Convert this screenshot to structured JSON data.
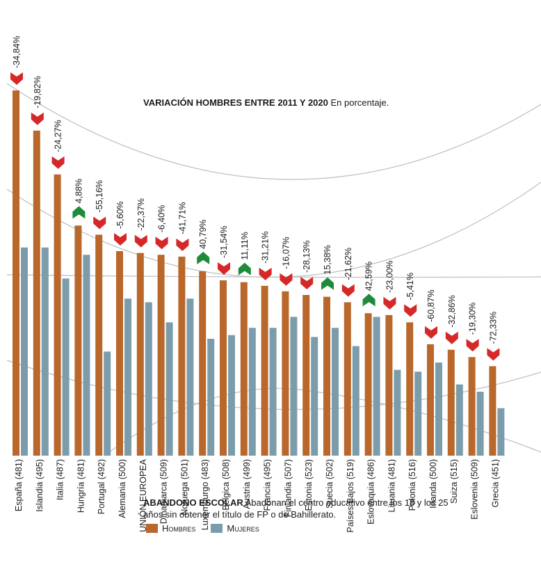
{
  "variation_title": {
    "bold": "VARIACIÓN HOMBRES  ENTRE 2011 Y 2020",
    "rest": " En porcentaje."
  },
  "footer": {
    "bold": "ABANDONO ESCOLAR",
    "rest": " Abadonan el centro educativo entre los 18 y los 25 años sin obtener el título de FP o de Bahillerato."
  },
  "legend": {
    "men": "Hombres",
    "women": "Mujeres"
  },
  "colors": {
    "men": "#b9672a",
    "women": "#7b9dab",
    "down": "#d62828",
    "up": "#1f8a3a",
    "guides": "#bdbdbd"
  },
  "chart_data": {
    "type": "bar",
    "categories": [
      "España (481)",
      "Islandia (495)",
      "Italia (487)",
      "Hungría (481)",
      "Portugal (492)",
      "Alemania (500)",
      "UNIÓN EUROPEA",
      "Dinamarca (509)",
      "Noruega (501)",
      "Luxemburgo (483)",
      "Bélgica (508)",
      "Austria (499)",
      "Francia (495)",
      "Finlandia (507)",
      "Estonia (523)",
      "Suecia (502)",
      "Países Bajos (519)",
      "Eslovaquia (486)",
      "Lituania (481)",
      "Polonia (516)",
      "Irlanda (500)",
      "Suiza (515)",
      "Eslovenia (509)",
      "Grecia (451)"
    ],
    "series": [
      {
        "name": "Hombres",
        "values": [
          20.0,
          17.8,
          15.4,
          12.6,
          12.1,
          11.2,
          11.1,
          11.0,
          10.9,
          10.1,
          9.6,
          9.5,
          9.3,
          9.0,
          8.8,
          8.7,
          8.4,
          7.8,
          7.7,
          7.3,
          6.1,
          5.8,
          5.4,
          4.9
        ]
      },
      {
        "name": "Mujeres",
        "values": [
          11.4,
          11.4,
          9.7,
          11.0,
          5.7,
          8.6,
          8.4,
          7.3,
          8.6,
          6.4,
          6.6,
          7.0,
          7.0,
          7.6,
          6.5,
          7.0,
          6.0,
          7.6,
          4.7,
          4.6,
          5.1,
          3.9,
          3.5,
          2.6
        ]
      }
    ],
    "variation_labels": [
      "-34,84%",
      "-19,82%",
      "-24,27%",
      "4,88%",
      "-55,16%",
      "-5,60%",
      "-22,37%",
      "-6,40%",
      "-41,71%",
      "40,79%",
      "-31,54%",
      "11,11%",
      "-31,21%",
      "-16,07%",
      "-28,13%",
      "15,38%",
      "-21,62%",
      "42,59%",
      "-23,00%",
      "-5,41%",
      "-60,87%",
      "-32,86%",
      "-19,30%",
      "-72,33%"
    ],
    "variation_direction": [
      "down",
      "down",
      "down",
      "up",
      "down",
      "down",
      "down",
      "down",
      "down",
      "up",
      "down",
      "up",
      "down",
      "down",
      "down",
      "up",
      "down",
      "up",
      "down",
      "down",
      "down",
      "down",
      "down",
      "down"
    ],
    "ylim": [
      0,
      20
    ],
    "grid": false,
    "legend_position": "bottom-left",
    "xlabel": "",
    "ylabel": ""
  }
}
